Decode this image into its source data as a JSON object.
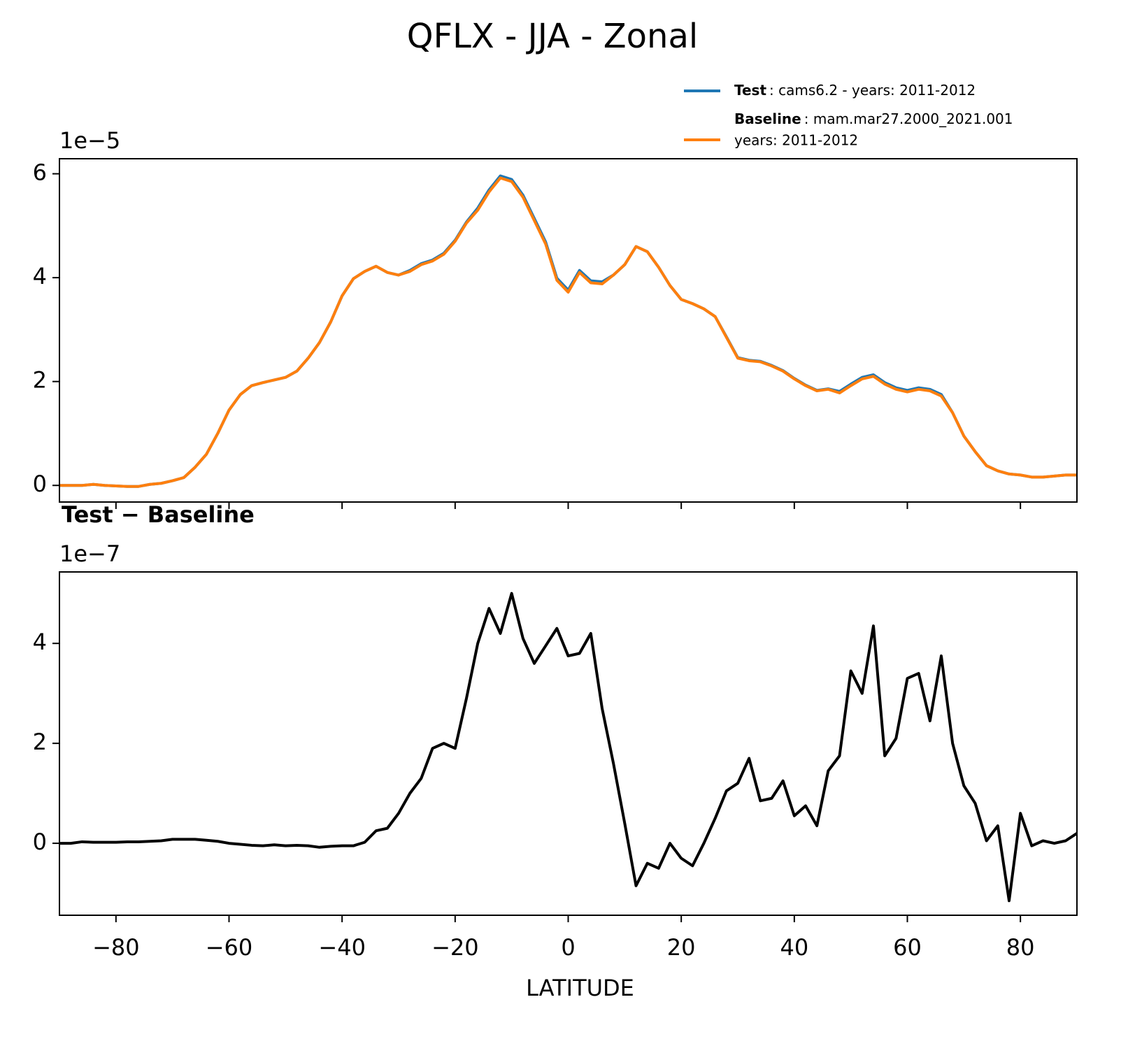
{
  "title": "QFLX - JJA - Zonal",
  "chart_data": [
    {
      "type": "line",
      "y_offset_label": "1e−5",
      "x": [
        -90,
        -88,
        -86,
        -84,
        -82,
        -80,
        -78,
        -76,
        -74,
        -72,
        -70,
        -68,
        -66,
        -64,
        -62,
        -60,
        -58,
        -56,
        -54,
        -52,
        -50,
        -48,
        -46,
        -44,
        -42,
        -40,
        -38,
        -36,
        -34,
        -32,
        -30,
        -28,
        -26,
        -24,
        -22,
        -20,
        -18,
        -16,
        -14,
        -12,
        -10,
        -8,
        -6,
        -4,
        -2,
        0,
        2,
        4,
        6,
        8,
        10,
        12,
        14,
        16,
        18,
        20,
        22,
        24,
        26,
        28,
        30,
        32,
        34,
        36,
        38,
        40,
        42,
        44,
        46,
        48,
        50,
        52,
        54,
        56,
        58,
        60,
        62,
        64,
        66,
        68,
        70,
        72,
        74,
        76,
        78,
        80,
        82,
        84,
        86,
        88,
        90
      ],
      "series": [
        {
          "name": "Test",
          "label_lines": [
            ": cams6.2 - years: 2011-2012"
          ],
          "color": "#1f77b4",
          "values": [
            0,
            0,
            0,
            0.02,
            0,
            -0.01,
            -0.02,
            -0.02,
            0.02,
            0.04,
            0.09,
            0.15,
            0.35,
            0.6,
            1.0,
            1.45,
            1.75,
            1.92,
            1.98,
            2.03,
            2.08,
            2.2,
            2.45,
            2.75,
            3.15,
            3.65,
            3.98,
            4.12,
            4.22,
            4.1,
            4.05,
            4.14,
            4.27,
            4.34,
            4.47,
            4.72,
            5.07,
            5.34,
            5.69,
            5.96,
            5.89,
            5.59,
            5.14,
            4.69,
            3.99,
            3.76,
            4.14,
            3.94,
            3.92,
            4.05,
            4.25,
            4.6,
            4.5,
            4.2,
            3.85,
            3.58,
            3.5,
            3.4,
            3.25,
            2.86,
            2.46,
            2.41,
            2.39,
            2.31,
            2.21,
            2.06,
            1.93,
            1.83,
            1.86,
            1.81,
            1.95,
            2.08,
            2.13,
            1.98,
            1.88,
            1.83,
            1.88,
            1.85,
            1.75,
            1.4,
            0.95,
            0.65,
            0.38,
            0.28,
            0.22,
            0.2,
            0.16,
            0.16,
            0.18,
            0.2,
            0.2
          ]
        },
        {
          "name": "Baseline",
          "label_lines": [
            ": mam.mar27.2000_2021.001",
            "years: 2011-2012"
          ],
          "color": "#ff7f0e",
          "values": [
            0,
            0,
            0,
            0.02,
            0,
            -0.01,
            -0.02,
            -0.02,
            0.02,
            0.04,
            0.09,
            0.15,
            0.35,
            0.6,
            1.0,
            1.45,
            1.75,
            1.92,
            1.98,
            2.03,
            2.08,
            2.2,
            2.45,
            2.75,
            3.15,
            3.65,
            3.98,
            4.12,
            4.22,
            4.1,
            4.05,
            4.12,
            4.25,
            4.32,
            4.45,
            4.7,
            5.05,
            5.3,
            5.65,
            5.92,
            5.85,
            5.55,
            5.1,
            4.65,
            3.95,
            3.72,
            4.1,
            3.9,
            3.88,
            4.05,
            4.25,
            4.6,
            4.5,
            4.2,
            3.85,
            3.58,
            3.5,
            3.4,
            3.25,
            2.85,
            2.45,
            2.4,
            2.38,
            2.3,
            2.2,
            2.05,
            1.92,
            1.82,
            1.85,
            1.78,
            1.92,
            2.05,
            2.1,
            1.95,
            1.85,
            1.8,
            1.85,
            1.82,
            1.72,
            1.4,
            0.95,
            0.65,
            0.38,
            0.28,
            0.22,
            0.2,
            0.16,
            0.16,
            0.18,
            0.2,
            0.2
          ]
        }
      ],
      "xlim": [
        -90,
        90
      ],
      "xticks": [
        -80,
        -60,
        -40,
        -20,
        0,
        20,
        40,
        60,
        80
      ],
      "ylim": [
        -0.32,
        6.29
      ],
      "yticks": [
        0,
        2,
        4,
        6
      ],
      "legend": "upper right"
    },
    {
      "type": "line",
      "title": "Test − Baseline",
      "y_offset_label": "1e−7",
      "xlabel": "LATITUDE",
      "x": [
        -90,
        -88,
        -86,
        -84,
        -82,
        -80,
        -78,
        -76,
        -74,
        -72,
        -70,
        -68,
        -66,
        -64,
        -62,
        -60,
        -58,
        -56,
        -54,
        -52,
        -50,
        -48,
        -46,
        -44,
        -42,
        -40,
        -38,
        -36,
        -34,
        -32,
        -30,
        -28,
        -26,
        -24,
        -22,
        -20,
        -18,
        -16,
        -14,
        -12,
        -10,
        -8,
        -6,
        -4,
        -2,
        0,
        2,
        4,
        6,
        8,
        10,
        12,
        14,
        16,
        18,
        20,
        22,
        24,
        26,
        28,
        30,
        32,
        34,
        36,
        38,
        40,
        42,
        44,
        46,
        48,
        50,
        52,
        54,
        56,
        58,
        60,
        62,
        64,
        66,
        68,
        70,
        72,
        74,
        76,
        78,
        80,
        82,
        84,
        86,
        88,
        90
      ],
      "color": "#000000",
      "values": [
        0,
        0,
        0.03,
        0.02,
        0.02,
        0.02,
        0.03,
        0.03,
        0.04,
        0.05,
        0.08,
        0.08,
        0.08,
        0.06,
        0.04,
        0,
        -0.02,
        -0.04,
        -0.05,
        -0.03,
        -0.05,
        -0.04,
        -0.05,
        -0.08,
        -0.06,
        -0.05,
        -0.05,
        0.02,
        0.25,
        0.3,
        0.6,
        1.0,
        1.3,
        1.9,
        2.0,
        1.9,
        2.9,
        4.0,
        4.7,
        4.2,
        5.0,
        4.1,
        3.6,
        3.95,
        4.3,
        3.75,
        3.8,
        4.2,
        2.7,
        1.6,
        0.4,
        -0.85,
        -0.4,
        -0.5,
        0,
        -0.3,
        -0.45,
        0,
        0.5,
        1.05,
        1.2,
        1.7,
        0.85,
        0.9,
        1.25,
        0.55,
        0.75,
        0.35,
        1.45,
        1.75,
        3.45,
        3.0,
        4.35,
        1.75,
        2.1,
        3.3,
        3.4,
        2.45,
        3.75,
        2.0,
        1.15,
        0.8,
        0.05,
        0.35,
        -1.15,
        0.6,
        -0.05,
        0.05,
        0,
        0.05,
        0.2
      ],
      "xlim": [
        -90,
        90
      ],
      "xticks": [
        {
          "value": -80,
          "label": "−80"
        },
        {
          "value": -60,
          "label": "−60"
        },
        {
          "value": -40,
          "label": "−40"
        },
        {
          "value": -20,
          "label": "−20"
        },
        0,
        20,
        40,
        60,
        80
      ],
      "ylim": [
        -1.44,
        5.43
      ],
      "yticks": [
        0,
        2,
        4
      ]
    }
  ]
}
